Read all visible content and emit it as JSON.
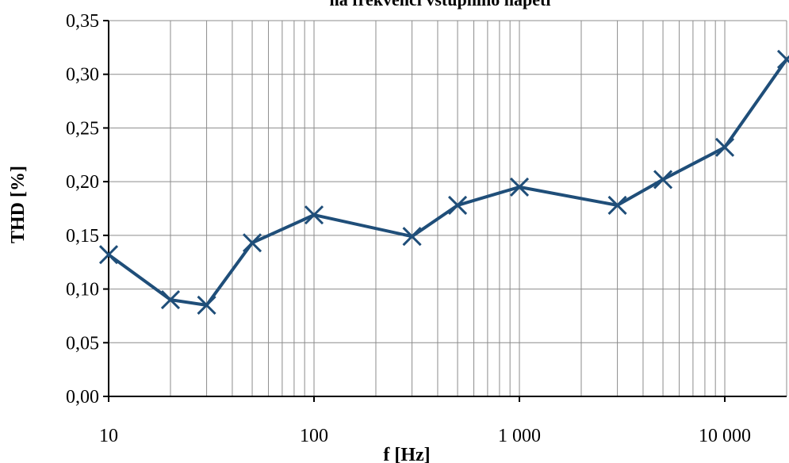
{
  "chart_data": {
    "type": "line",
    "title": "na frekvenci vstupního napětí",
    "xlabel": "f [Hz]",
    "ylabel": "THD [%]",
    "x_scale": "log",
    "xlim": [
      10,
      20000
    ],
    "ylim": [
      0,
      0.35
    ],
    "x_ticks": [
      10,
      100,
      1000,
      10000
    ],
    "x_tick_labels": [
      "10",
      "100",
      "1 000",
      "10 000"
    ],
    "y_ticks": [
      0,
      0.05,
      0.1,
      0.15,
      0.2,
      0.25,
      0.3,
      0.35
    ],
    "y_tick_labels": [
      "0,00",
      "0,05",
      "0,10",
      "0,15",
      "0,20",
      "0,25",
      "0,30",
      "0,35"
    ],
    "grid": true,
    "legend": "none",
    "series_color": "#1f4e79",
    "series": [
      {
        "x": [
          10,
          20,
          30,
          50,
          100,
          300,
          500,
          1000,
          3000,
          5000,
          10000,
          20000
        ],
        "values": [
          0.132,
          0.09,
          0.085,
          0.143,
          0.169,
          0.149,
          0.178,
          0.195,
          0.178,
          0.202,
          0.232,
          0.314
        ]
      }
    ]
  }
}
